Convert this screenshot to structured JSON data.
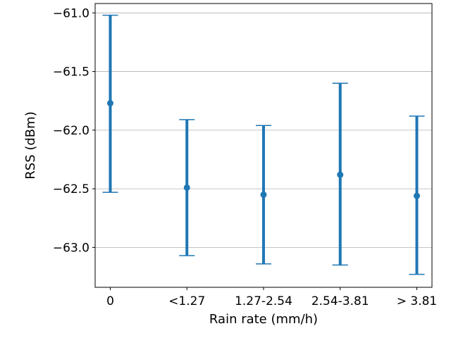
{
  "chart_data": {
    "type": "errorbar",
    "title": "",
    "xlabel": "Rain rate (mm/h)",
    "ylabel": "RSS (dBm)",
    "categories": [
      "0",
      "<1.27",
      "1.27-2.54",
      "2.54-3.81",
      "> 3.81"
    ],
    "series": [
      {
        "values": [
          -61.77,
          -62.49,
          -62.55,
          -62.38,
          -62.56
        ],
        "lower": [
          -62.53,
          -63.07,
          -63.14,
          -63.15,
          -63.23
        ],
        "upper": [
          -61.02,
          -61.91,
          -61.96,
          -61.6,
          -61.88
        ]
      }
    ],
    "ylim": [
      -63.34,
      -60.92
    ],
    "yticks": [
      -61.0,
      -61.5,
      -62.0,
      -62.5,
      -63.0
    ],
    "ytick_labels": [
      "−61.0",
      "−61.5",
      "−62.0",
      "−62.5",
      "−63.0"
    ],
    "grid": "y",
    "color": "#1f77b4"
  }
}
